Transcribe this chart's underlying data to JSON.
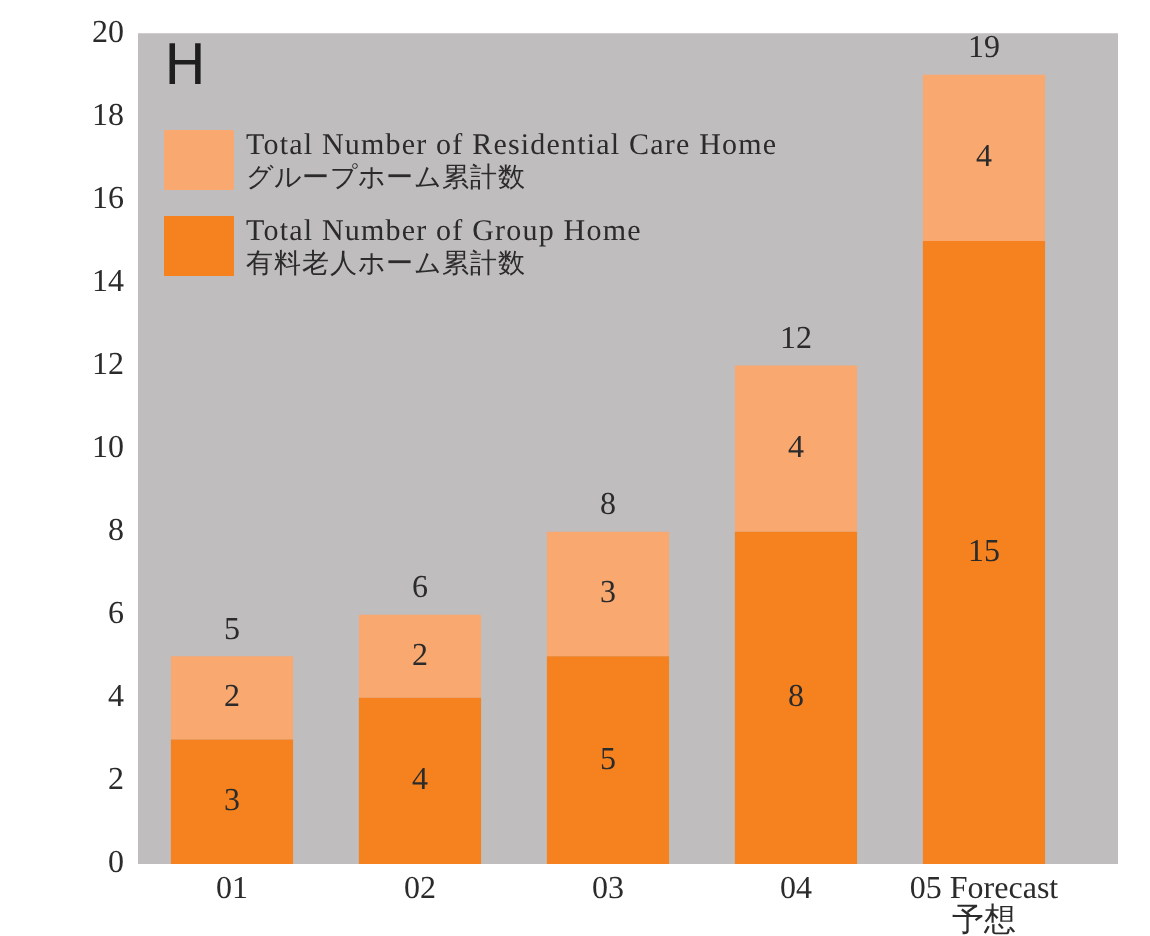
{
  "chart_data": {
    "type": "bar",
    "stacked": true,
    "categories": [
      "01",
      "02",
      "03",
      "04",
      "05 Forecast\n予想"
    ],
    "series": [
      {
        "name": "Total Number of Group Home\n有料老人ホーム累計数",
        "color": "#f5821f",
        "values": [
          3,
          4,
          5,
          8,
          15
        ]
      },
      {
        "name": "Total Number of Residential Care Home\nグループホーム累計数",
        "color": "#f9a86f",
        "values": [
          2,
          2,
          3,
          4,
          4
        ]
      }
    ],
    "ylim": [
      0,
      20
    ],
    "yticks": [
      0,
      2,
      4,
      6,
      8,
      10,
      12,
      14,
      16,
      18,
      20
    ],
    "grid": false,
    "legend": "top left",
    "data_labels": true,
    "totals": [
      "5",
      "6",
      "8",
      "12",
      "19"
    ],
    "annotations": [
      "H"
    ]
  }
}
